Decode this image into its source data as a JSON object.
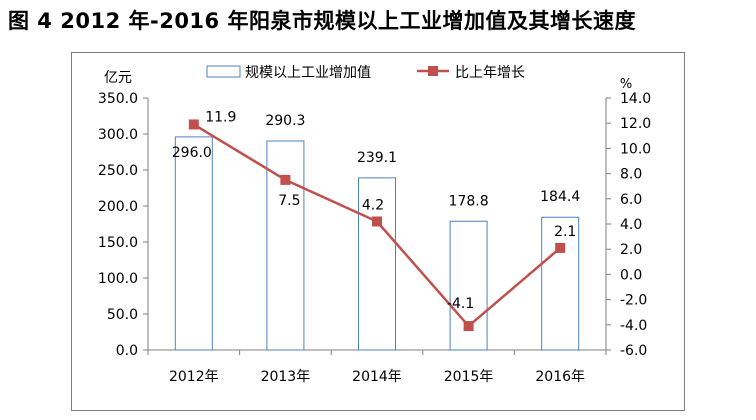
{
  "title": "图 4   2012 年-2016 年阳泉市规模以上工业增加值及其增长速度",
  "chart_data": {
    "type": "bar",
    "categories": [
      "2012年",
      "2013年",
      "2014年",
      "2015年",
      "2016年"
    ],
    "series": [
      {
        "name": "规模以上工业增加值",
        "type": "bar",
        "axis": "left",
        "values": [
          296.0,
          290.3,
          239.1,
          178.8,
          184.4
        ],
        "labels": [
          "296.0",
          "290.3",
          "239.1",
          "178.8",
          "184.4"
        ],
        "color": "#4f81bd"
      },
      {
        "name": "比上年增长",
        "type": "line",
        "axis": "right",
        "values": [
          11.9,
          7.5,
          4.2,
          -4.1,
          2.1
        ],
        "labels": [
          "11.9",
          "7.5",
          "4.2",
          "-4.1",
          "2.1"
        ],
        "color": "#c0504d"
      }
    ],
    "ylabel_left": "亿元",
    "ylabel_right": "%",
    "ylim_left": [
      0,
      350
    ],
    "ylim_right": [
      -6,
      14
    ],
    "yticks_left": [
      "0.0",
      "50.0",
      "100.0",
      "150.0",
      "200.0",
      "250.0",
      "300.0",
      "350.0"
    ],
    "yticks_right": [
      "-6.0",
      "-4.0",
      "-2.0",
      "0.0",
      "2.0",
      "4.0",
      "6.0",
      "8.0",
      "10.0",
      "12.0",
      "14.0"
    ],
    "grid": false,
    "legend_position": "top"
  }
}
